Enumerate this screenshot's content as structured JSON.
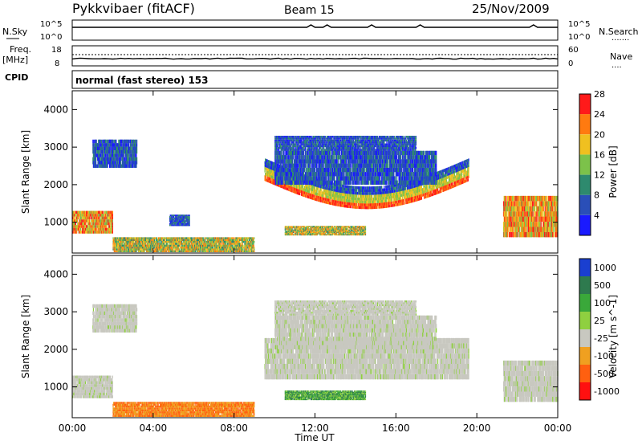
{
  "header": {
    "title": "Pykkvibaer (fitACF)",
    "beam": "Beam 15",
    "date": "25/Nov/2009"
  },
  "nsky_panel": {
    "left_label": "N.Sky",
    "left_ticks": [
      "10^5",
      "10^0"
    ],
    "right_ticks": [
      "10^5",
      "10^0"
    ],
    "right_label": "N.Search",
    "right_marker": "......."
  },
  "freq_panel": {
    "left_label_1": "Freq.",
    "left_label_2": "[MHz]",
    "left_ticks": [
      "18",
      "8"
    ],
    "right_ticks": [
      "60",
      "0"
    ],
    "right_label": "Nave",
    "right_marker": "....",
    "cpid_label": "CPID"
  },
  "cpid_text": "normal (fast stereo) 153",
  "chart_data": [
    {
      "type": "heatmap",
      "title": "",
      "ylabel": "Slant Range [km]",
      "ylim": [
        180,
        4500
      ],
      "yticks": [
        "1000",
        "2000",
        "3000",
        "4000"
      ],
      "xlim": [
        "00:00",
        "00:00"
      ],
      "colorbar_label": "Power [dB]",
      "colorbar_ticks": [
        "4",
        "8",
        "12",
        "16",
        "20",
        "24",
        "28"
      ],
      "colorbar_colors": [
        "#1a1aff",
        "#2a4fb8",
        "#2e8a6e",
        "#7cc24a",
        "#f0c020",
        "#ff7a10",
        "#ff1a1a"
      ],
      "regions": [
        {
          "t0": 0.0,
          "t1": 2.0,
          "r0": 700,
          "r1": 1300,
          "level": "high"
        },
        {
          "t0": 1.0,
          "t1": 3.2,
          "r0": 2450,
          "r1": 3200,
          "level": "low"
        },
        {
          "t0": 2.0,
          "t1": 9.0,
          "r0": 200,
          "r1": 600,
          "level": "mid"
        },
        {
          "t0": 4.8,
          "t1": 5.8,
          "r0": 900,
          "r1": 1200,
          "level": "low"
        },
        {
          "t0": 9.5,
          "t1": 19.6,
          "r0": 1200,
          "r1": 2300,
          "level": "arc"
        },
        {
          "t0": 10.0,
          "t1": 18.0,
          "r0": 2000,
          "r1": 2900,
          "level": "low"
        },
        {
          "t0": 10.0,
          "t1": 17.0,
          "r0": 2900,
          "r1": 3300,
          "level": "low"
        },
        {
          "t0": 10.5,
          "t1": 14.5,
          "r0": 650,
          "r1": 900,
          "level": "mid"
        },
        {
          "t0": 21.3,
          "t1": 24.0,
          "r0": 600,
          "r1": 1700,
          "level": "high"
        }
      ]
    },
    {
      "type": "heatmap",
      "title": "",
      "ylabel": "Slant Range [km]",
      "ylim": [
        180,
        4500
      ],
      "yticks": [
        "1000",
        "2000",
        "3000",
        "4000"
      ],
      "xlabel": "Time UT",
      "xticks": [
        "00:00",
        "04:00",
        "08:00",
        "12:00",
        "16:00",
        "20:00",
        "00:00"
      ],
      "colorbar_label": "Velocity [m s^-1]",
      "colorbar_ticks": [
        "1000",
        "500",
        "100",
        "25",
        "-25",
        "-100",
        "-500",
        "-1000"
      ],
      "colorbar_colors": [
        "#1a3fd0",
        "#2e7a4e",
        "#3aa83a",
        "#8fd040",
        "#c8c8c0",
        "#f0a020",
        "#ff6010",
        "#ff1010"
      ],
      "regions": [
        {
          "t0": 0.0,
          "t1": 2.0,
          "r0": 700,
          "r1": 1300,
          "level": "ground"
        },
        {
          "t0": 1.0,
          "t1": 3.2,
          "r0": 2450,
          "r1": 3200,
          "level": "ground"
        },
        {
          "t0": 2.0,
          "t1": 9.0,
          "r0": 200,
          "r1": 600,
          "level": "neg"
        },
        {
          "t0": 9.5,
          "t1": 19.6,
          "r0": 1200,
          "r1": 2300,
          "level": "ground"
        },
        {
          "t0": 10.0,
          "t1": 18.0,
          "r0": 2000,
          "r1": 2900,
          "level": "ground"
        },
        {
          "t0": 10.0,
          "t1": 17.0,
          "r0": 2900,
          "r1": 3300,
          "level": "ground"
        },
        {
          "t0": 10.5,
          "t1": 14.5,
          "r0": 650,
          "r1": 900,
          "level": "pos"
        },
        {
          "t0": 21.3,
          "t1": 24.0,
          "r0": 600,
          "r1": 1700,
          "level": "ground"
        }
      ]
    }
  ]
}
